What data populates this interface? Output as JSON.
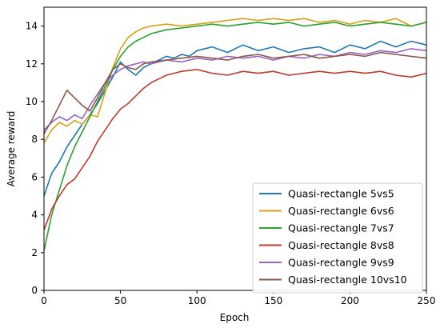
{
  "chart_data": {
    "type": "line",
    "title": "",
    "xlabel": "Epoch",
    "ylabel": "Average reward",
    "xlim": [
      0,
      250
    ],
    "ylim": [
      0,
      15
    ],
    "xticks": [
      0,
      50,
      100,
      150,
      200,
      250
    ],
    "yticks": [
      0,
      2,
      4,
      6,
      8,
      10,
      12,
      14
    ],
    "grid": false,
    "legend_position": "lower-right",
    "series": [
      {
        "name": "Quasi-rectangle 5vs5",
        "color": "#1f77b4",
        "x": [
          0,
          5,
          10,
          15,
          20,
          25,
          30,
          35,
          40,
          45,
          50,
          55,
          60,
          65,
          70,
          75,
          80,
          85,
          90,
          95,
          100,
          110,
          120,
          130,
          140,
          150,
          160,
          170,
          180,
          190,
          200,
          210,
          220,
          230,
          240,
          245,
          250
        ],
        "y": [
          5.0,
          6.2,
          6.8,
          7.6,
          8.2,
          8.8,
          9.3,
          9.9,
          10.6,
          11.3,
          12.1,
          11.7,
          11.4,
          11.8,
          12.0,
          12.2,
          12.4,
          12.3,
          12.5,
          12.4,
          12.7,
          12.9,
          12.6,
          13.0,
          12.7,
          12.9,
          12.6,
          12.8,
          12.9,
          12.6,
          13.0,
          12.8,
          13.2,
          12.9,
          13.2,
          13.1,
          13.0
        ]
      },
      {
        "name": "Quasi-rectangle 6vs6",
        "color": "#d4a017",
        "x": [
          0,
          5,
          10,
          15,
          20,
          25,
          30,
          35,
          40,
          45,
          50,
          55,
          60,
          65,
          70,
          80,
          90,
          100,
          110,
          120,
          130,
          140,
          150,
          160,
          170,
          180,
          190,
          200,
          210,
          220,
          230,
          240,
          250
        ],
        "y": [
          7.8,
          8.5,
          8.9,
          8.7,
          9.0,
          8.8,
          9.3,
          9.2,
          10.5,
          11.8,
          12.8,
          13.4,
          13.7,
          13.9,
          14.0,
          14.1,
          14.0,
          14.1,
          14.2,
          14.3,
          14.4,
          14.3,
          14.4,
          14.3,
          14.4,
          14.2,
          14.3,
          14.1,
          14.3,
          14.2,
          14.4,
          14.0,
          14.2
        ]
      },
      {
        "name": "Quasi-rectangle 7vs7",
        "color": "#2ca02c",
        "x": [
          0,
          5,
          10,
          15,
          20,
          25,
          30,
          35,
          40,
          45,
          50,
          55,
          60,
          65,
          70,
          80,
          90,
          100,
          110,
          120,
          130,
          140,
          150,
          160,
          170,
          180,
          190,
          200,
          210,
          220,
          230,
          240,
          250
        ],
        "y": [
          2.1,
          4.0,
          5.3,
          6.6,
          7.6,
          8.4,
          9.2,
          10.0,
          10.8,
          11.7,
          12.4,
          12.9,
          13.2,
          13.4,
          13.6,
          13.8,
          13.9,
          14.0,
          14.1,
          14.0,
          14.1,
          14.2,
          14.1,
          14.2,
          14.0,
          14.1,
          14.2,
          14.0,
          14.1,
          14.2,
          14.1,
          14.0,
          14.2
        ]
      },
      {
        "name": "Quasi-rectangle 8vs8",
        "color": "#c0392b",
        "x": [
          0,
          5,
          10,
          15,
          20,
          25,
          30,
          35,
          40,
          45,
          50,
          55,
          60,
          65,
          70,
          75,
          80,
          85,
          90,
          100,
          110,
          120,
          130,
          140,
          150,
          160,
          170,
          180,
          190,
          200,
          210,
          220,
          230,
          240,
          250
        ],
        "y": [
          3.2,
          4.3,
          5.0,
          5.6,
          5.9,
          6.5,
          7.1,
          7.9,
          8.5,
          9.1,
          9.6,
          9.9,
          10.3,
          10.7,
          11.0,
          11.2,
          11.4,
          11.5,
          11.6,
          11.7,
          11.5,
          11.4,
          11.6,
          11.5,
          11.6,
          11.4,
          11.5,
          11.6,
          11.5,
          11.6,
          11.5,
          11.6,
          11.4,
          11.3,
          11.5
        ]
      },
      {
        "name": "Quasi-rectangle 9vs9",
        "color": "#9467bd",
        "x": [
          0,
          5,
          10,
          15,
          20,
          25,
          30,
          35,
          40,
          45,
          50,
          55,
          60,
          65,
          70,
          80,
          90,
          100,
          110,
          120,
          130,
          140,
          150,
          160,
          170,
          180,
          190,
          200,
          210,
          220,
          230,
          240,
          250
        ],
        "y": [
          8.5,
          8.9,
          9.2,
          9.0,
          9.3,
          9.1,
          9.8,
          10.4,
          11.0,
          11.4,
          11.7,
          11.9,
          12.0,
          12.1,
          12.0,
          12.2,
          12.1,
          12.3,
          12.2,
          12.4,
          12.3,
          12.4,
          12.2,
          12.4,
          12.3,
          12.5,
          12.4,
          12.6,
          12.5,
          12.7,
          12.6,
          12.8,
          12.7
        ]
      },
      {
        "name": "Quasi-rectangle 10vs10",
        "color": "#8c564b",
        "x": [
          0,
          5,
          10,
          15,
          20,
          25,
          30,
          35,
          40,
          45,
          50,
          55,
          60,
          65,
          70,
          80,
          90,
          100,
          110,
          120,
          130,
          140,
          150,
          160,
          170,
          180,
          190,
          200,
          210,
          220,
          230,
          240,
          250
        ],
        "y": [
          8.3,
          9.0,
          9.8,
          10.6,
          10.2,
          9.8,
          9.5,
          10.2,
          11.0,
          11.7,
          12.0,
          11.8,
          11.7,
          12.0,
          12.1,
          12.2,
          12.3,
          12.4,
          12.3,
          12.2,
          12.4,
          12.5,
          12.3,
          12.4,
          12.5,
          12.3,
          12.4,
          12.5,
          12.4,
          12.6,
          12.5,
          12.4,
          12.3
        ]
      }
    ]
  }
}
